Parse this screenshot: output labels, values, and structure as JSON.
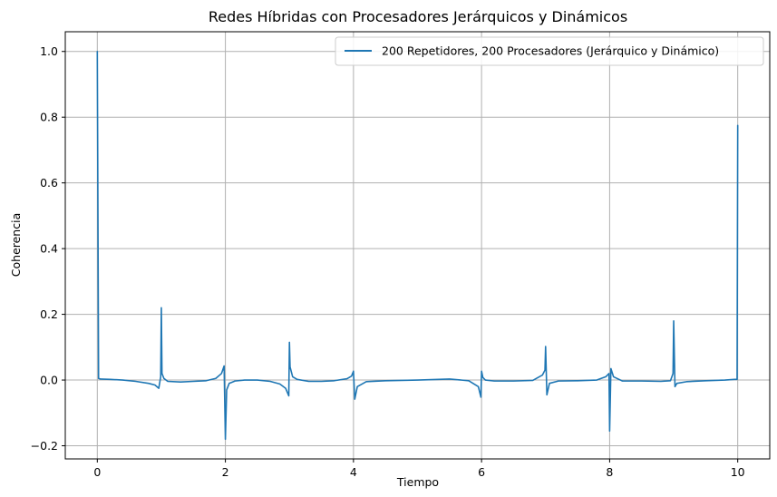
{
  "chart_data": {
    "type": "line",
    "title": "Redes Híbridas con Procesadores Jerárquicos y Dinámicos",
    "xlabel": "Tiempo",
    "ylabel": "Coherencia",
    "xlim": [
      -0.5,
      10.5
    ],
    "ylim": [
      -0.24,
      1.06
    ],
    "xticks": [
      0,
      2,
      4,
      6,
      8,
      10
    ],
    "xtick_labels": [
      "0",
      "2",
      "4",
      "6",
      "8",
      "10"
    ],
    "yticks": [
      -0.2,
      0.0,
      0.2,
      0.4,
      0.6,
      0.8,
      1.0
    ],
    "ytick_labels": [
      "−0.2",
      "0.0",
      "0.2",
      "0.4",
      "0.6",
      "0.8",
      "1.0"
    ],
    "grid": true,
    "legend_position": "top-right",
    "series": [
      {
        "name": "200 Repetidores, 200 Procesadores (Jerárquico y Dinámico)",
        "color": "#1f77b4",
        "x": [
          0,
          0.02,
          0.05,
          0.2,
          0.4,
          0.6,
          0.8,
          0.9,
          0.96,
          0.99,
          1.0,
          1.01,
          1.04,
          1.1,
          1.3,
          1.5,
          1.7,
          1.85,
          1.94,
          1.98,
          2.0,
          2.02,
          2.06,
          2.15,
          2.3,
          2.5,
          2.7,
          2.85,
          2.94,
          2.99,
          3.0,
          3.01,
          3.05,
          3.12,
          3.3,
          3.5,
          3.7,
          3.9,
          3.97,
          4.0,
          4.02,
          4.06,
          4.2,
          4.5,
          5.0,
          5.5,
          5.8,
          5.95,
          5.99,
          6.0,
          6.02,
          6.06,
          6.2,
          6.5,
          6.8,
          6.95,
          6.99,
          7.0,
          7.02,
          7.06,
          7.2,
          7.5,
          7.8,
          7.94,
          7.99,
          8.0,
          8.02,
          8.06,
          8.2,
          8.5,
          8.8,
          8.95,
          8.99,
          9.0,
          9.02,
          9.05,
          9.2,
          9.5,
          9.8,
          9.95,
          9.99,
          10.0
        ],
        "y": [
          1.0,
          0.005,
          0.003,
          0.002,
          0.0,
          -0.004,
          -0.01,
          -0.015,
          -0.025,
          0.01,
          0.22,
          0.02,
          0.005,
          -0.004,
          -0.006,
          -0.004,
          -0.002,
          0.005,
          0.02,
          0.043,
          -0.18,
          -0.03,
          -0.01,
          -0.003,
          0.0,
          0.0,
          -0.004,
          -0.012,
          -0.025,
          -0.048,
          0.115,
          0.04,
          0.01,
          0.002,
          -0.004,
          -0.004,
          -0.002,
          0.004,
          0.012,
          0.027,
          -0.058,
          -0.02,
          -0.005,
          -0.002,
          0.0,
          0.003,
          -0.002,
          -0.02,
          -0.052,
          0.027,
          0.008,
          0.0,
          -0.003,
          -0.003,
          -0.001,
          0.015,
          0.03,
          0.102,
          -0.045,
          -0.01,
          -0.003,
          -0.002,
          0.0,
          0.01,
          0.02,
          -0.155,
          0.035,
          0.01,
          -0.003,
          -0.003,
          -0.004,
          -0.002,
          0.02,
          0.18,
          -0.02,
          -0.01,
          -0.005,
          -0.002,
          0.0,
          0.002,
          0.002,
          0.775
        ]
      }
    ]
  }
}
